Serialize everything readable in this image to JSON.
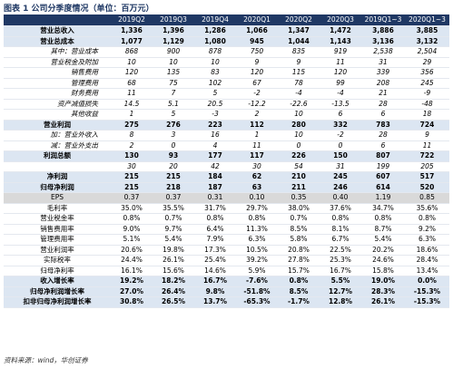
{
  "title": "图表 1  公司分季度情况（单位：百万元）",
  "table": {
    "header": [
      null,
      "2019Q2",
      "2019Q3",
      "2019Q4",
      "2020Q1",
      "2020Q2",
      "2020Q3",
      "2019Q1~3",
      "2020Q1~3"
    ],
    "rows": [
      [
        "营业总收入",
        "1,336",
        "1,396",
        "1,286",
        "1,066",
        "1,347",
        "1,472",
        "3,886",
        "3,885"
      ],
      [
        "营业总成本",
        "1,077",
        "1,129",
        "1,080",
        "945",
        "1,044",
        "1,143",
        "3,136",
        "3,132"
      ],
      [
        "其中：营业成本",
        "868",
        "900",
        "878",
        "750",
        "835",
        "919",
        "2,538",
        "2,504"
      ],
      [
        "营业税金及附加",
        "10",
        "10",
        "10",
        "9",
        "9",
        "11",
        "31",
        "29"
      ],
      [
        "销售费用",
        "120",
        "135",
        "83",
        "120",
        "115",
        "120",
        "339",
        "356"
      ],
      [
        "管理费用",
        "68",
        "75",
        "102",
        "67",
        "78",
        "99",
        "208",
        "245"
      ],
      [
        "财务费用",
        "11",
        "7",
        "5",
        "-2",
        "-4",
        "-4",
        "21",
        "-9"
      ],
      [
        "资产减值损失",
        "14.5",
        "5.1",
        "20.5",
        "-12.2",
        "-22.6",
        "-13.5",
        "28",
        "-48"
      ],
      [
        "其他收益",
        "1",
        "5",
        "-3",
        "2",
        "10",
        "6",
        "6",
        "18"
      ],
      [
        "营业利润",
        "275",
        "276",
        "223",
        "112",
        "280",
        "332",
        "783",
        "724"
      ],
      [
        "加：营业外收入",
        "8",
        "3",
        "16",
        "1",
        "10",
        "-2",
        "28",
        "9"
      ],
      [
        "减：营业外支出",
        "2",
        "0",
        "4",
        "11",
        "0",
        "0",
        "6",
        "11"
      ],
      [
        "利润总额",
        "130",
        "93",
        "177",
        "117",
        "226",
        "150",
        "807",
        "722"
      ],
      [
        null,
        "30",
        "20",
        "42",
        "30",
        "54",
        "31",
        "199",
        "205"
      ],
      [
        "净利润",
        "215",
        "215",
        "184",
        "62",
        "210",
        "245",
        "607",
        "517"
      ],
      [
        "归母净利润",
        "215",
        "218",
        "187",
        "63",
        "211",
        "246",
        "614",
        "520"
      ],
      [
        "EPS",
        "0.37",
        "0.37",
        "0.31",
        "0.10",
        "0.35",
        "0.40",
        "1.19",
        "0.85"
      ],
      [
        "毛利率",
        "35.0%",
        "35.5%",
        "31.7%",
        "29.7%",
        "38.0%",
        "37.6%",
        "34.7%",
        "35.6%"
      ],
      [
        "营业税金率",
        "0.8%",
        "0.7%",
        "0.8%",
        "0.8%",
        "0.7%",
        "0.8%",
        "0.8%",
        "0.8%"
      ],
      [
        "销售费用率",
        "9.0%",
        "9.7%",
        "6.4%",
        "11.3%",
        "8.5%",
        "8.1%",
        "8.7%",
        "9.2%"
      ],
      [
        "管理费用率",
        "5.1%",
        "5.4%",
        "7.9%",
        "6.3%",
        "5.8%",
        "6.7%",
        "5.4%",
        "6.3%"
      ],
      [
        "营业利润率",
        "20.6%",
        "19.8%",
        "17.3%",
        "10.5%",
        "20.8%",
        "22.5%",
        "20.2%",
        "18.6%"
      ],
      [
        "实际税率",
        "24.4%",
        "26.1%",
        "25.4%",
        "39.2%",
        "27.8%",
        "25.3%",
        "24.6%",
        "28.4%"
      ],
      [
        "归母净利率",
        "16.1%",
        "15.6%",
        "14.6%",
        "5.9%",
        "15.7%",
        "16.7%",
        "15.8%",
        "13.4%"
      ],
      [
        "收入增长率",
        "19.2%",
        "18.2%",
        "16.7%",
        "-7.6%",
        "0.8%",
        "5.5%",
        "19.0%",
        "0.0%"
      ],
      [
        "归母净利润增长率",
        "27.0%",
        "26.4%",
        "9.8%",
        "-51.8%",
        "8.5%",
        "12.7%",
        "28.3%",
        "-15.3%"
      ],
      [
        "扣非归母净利润增长率",
        "30.8%",
        "26.5%",
        "13.7%",
        "-65.3%",
        "-1.7%",
        "12.8%",
        "26.1%",
        "-15.3%"
      ]
    ]
  },
  "source": "资料来源：wind，华创证券"
}
